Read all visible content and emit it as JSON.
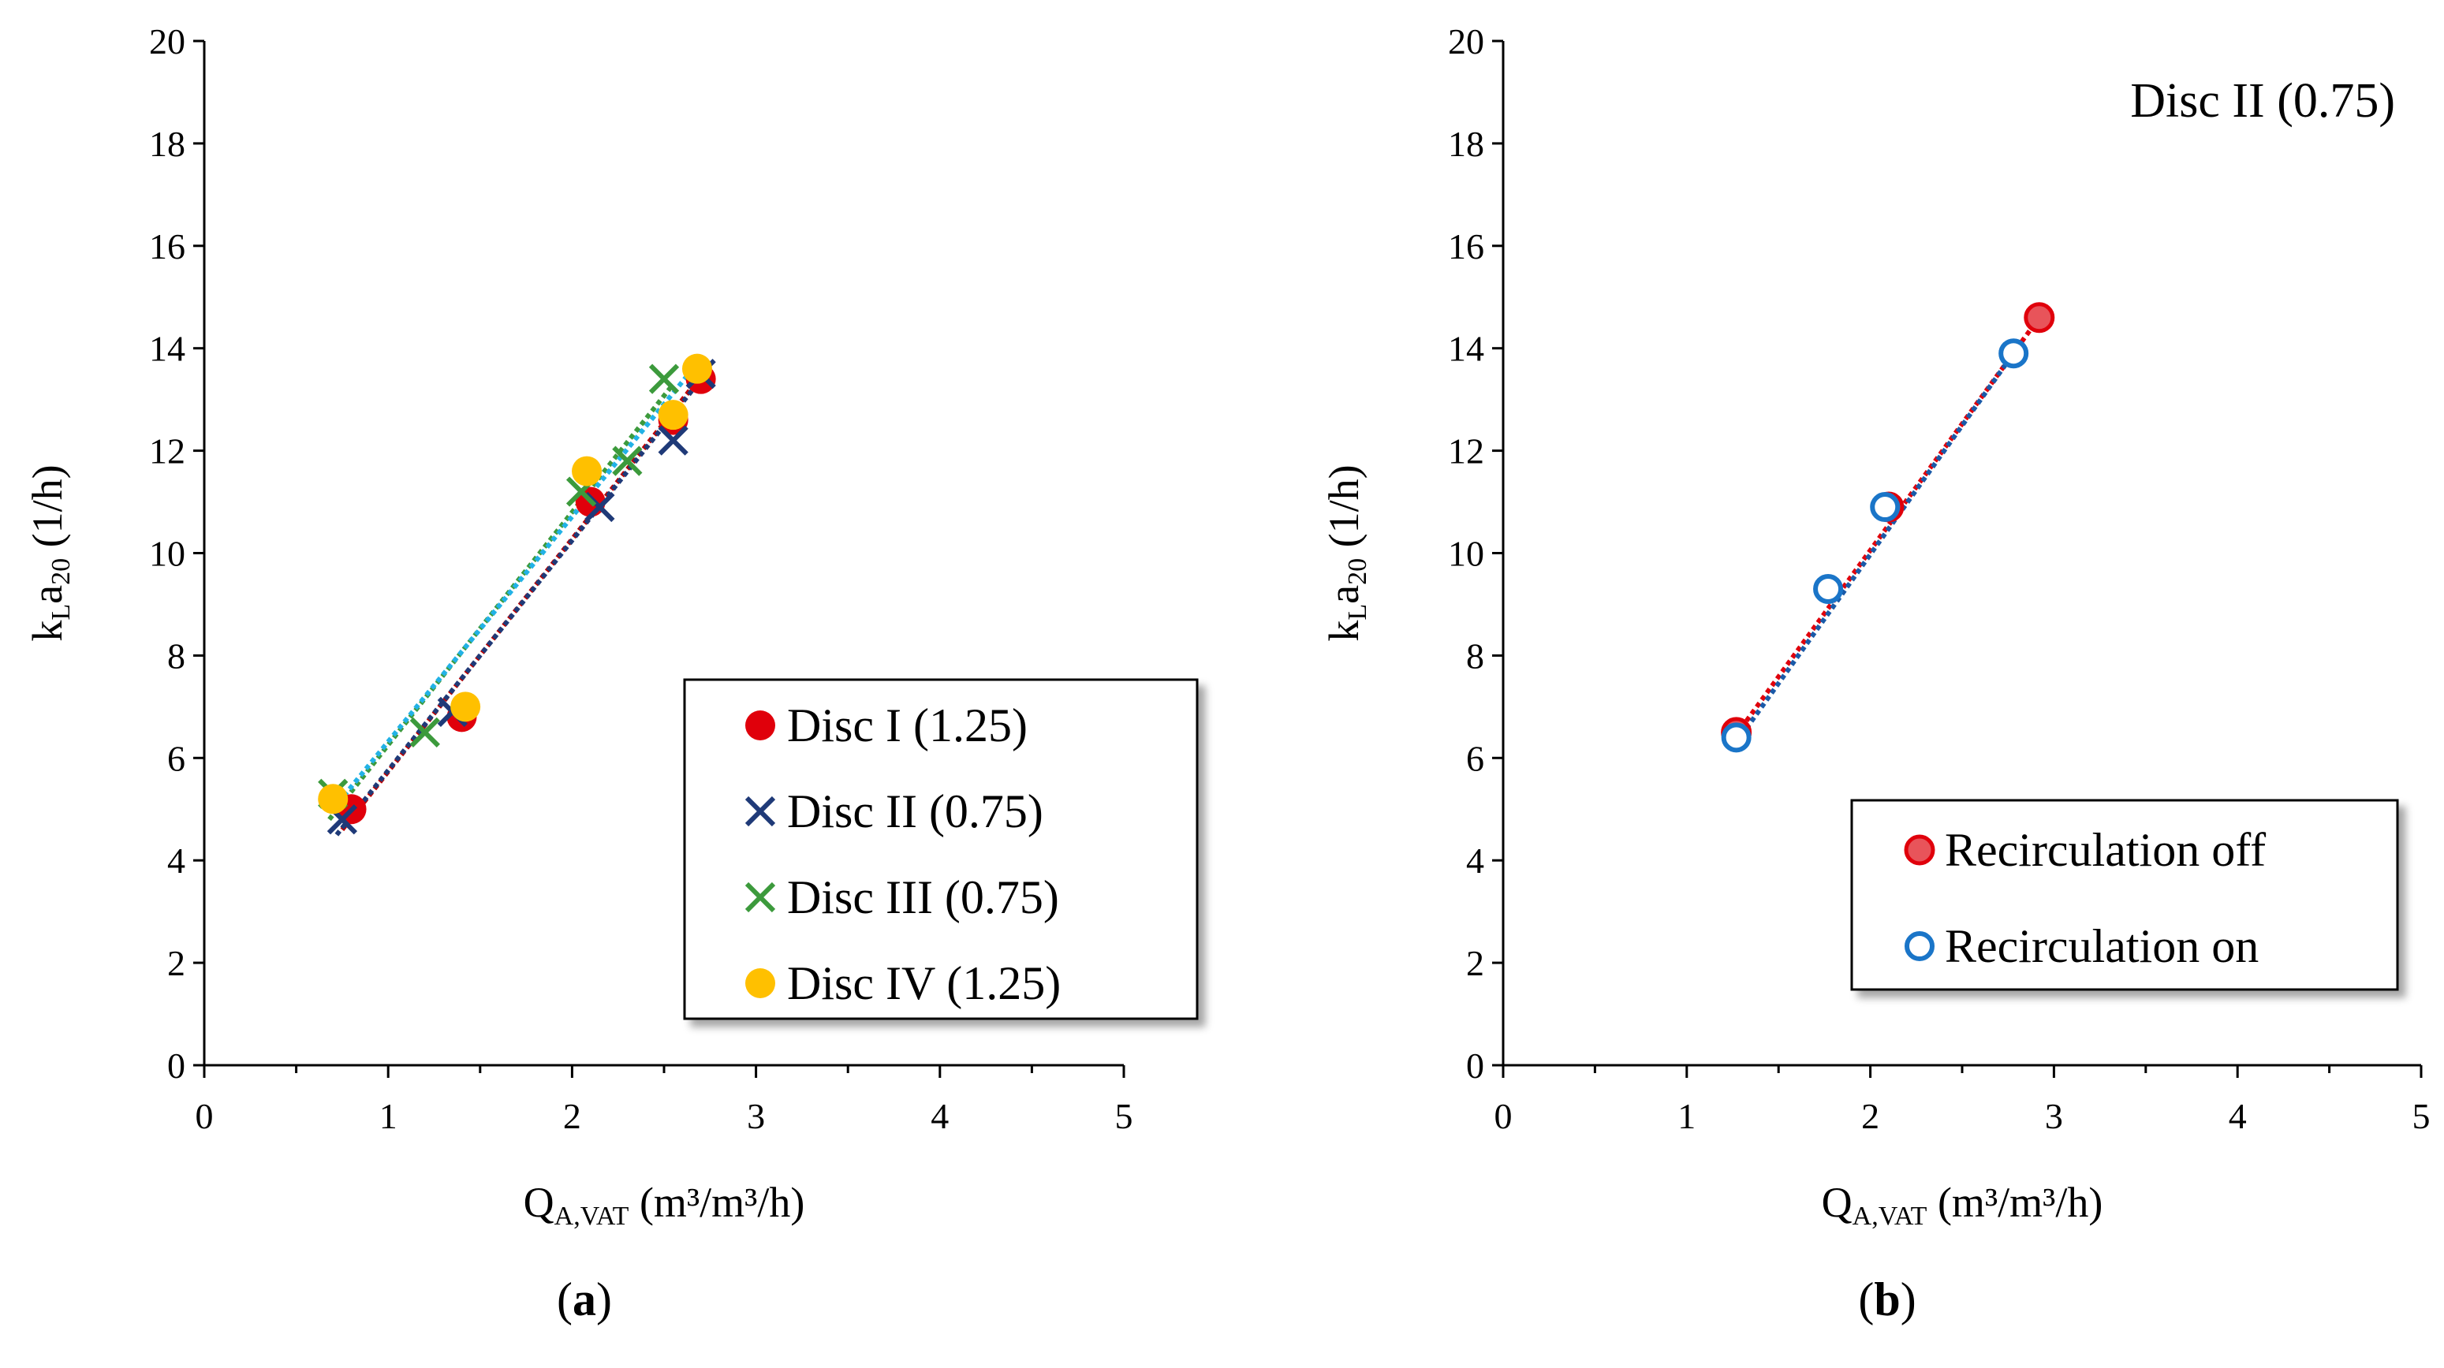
{
  "chart_data": [
    {
      "type": "scatter",
      "panel_label": "a",
      "xlabel": {
        "main": "Q",
        "sub": "A,VAT",
        "unit": " (m³/m³/h)"
      },
      "ylabel": {
        "k": "k",
        "k_sub": "L",
        "a": "a",
        "a_sub": "20",
        "unit": " (1/h)"
      },
      "xlim": [
        0,
        5
      ],
      "ylim": [
        0,
        20
      ],
      "xticks": [
        "0",
        "1",
        "2",
        "3",
        "4",
        "5"
      ],
      "yticks": [
        "0",
        "2",
        "4",
        "6",
        "8",
        "10",
        "12",
        "14",
        "16",
        "18",
        "20"
      ],
      "legend_position": "bottom-right",
      "series": [
        {
          "name": "Disc I (1.25)",
          "marker": "filled-circle",
          "color": "#e0000b",
          "trend_color": "#c00000",
          "points": [
            [
              0.8,
              5.0
            ],
            [
              1.4,
              6.8
            ],
            [
              2.1,
              11.0
            ],
            [
              2.55,
              12.6
            ],
            [
              2.7,
              13.4
            ]
          ],
          "trend": [
            [
              0.75,
              4.6
            ],
            [
              2.7,
              13.45
            ]
          ]
        },
        {
          "name": "Disc II (0.75)",
          "marker": "x",
          "color": "#1f3a78",
          "trend_color": "#1f3a78",
          "points": [
            [
              0.75,
              4.8
            ],
            [
              1.35,
              6.9
            ],
            [
              2.15,
              10.9
            ],
            [
              2.55,
              12.2
            ],
            [
              2.7,
              13.5
            ]
          ],
          "trend": [
            [
              0.72,
              4.5
            ],
            [
              2.68,
              13.3
            ]
          ]
        },
        {
          "name": "Disc III (0.75)",
          "marker": "x",
          "color": "#3c9a3c",
          "trend_color": "#3c9a3c",
          "points": [
            [
              0.7,
              5.3
            ],
            [
              1.2,
              6.5
            ],
            [
              2.05,
              11.2
            ],
            [
              2.3,
              11.8
            ],
            [
              2.5,
              13.4
            ]
          ],
          "trend": [
            [
              0.68,
              4.8
            ],
            [
              2.55,
              13.3
            ]
          ]
        },
        {
          "name": "Disc IV (1.25)",
          "marker": "filled-circle",
          "color": "#ffc000",
          "trend_color": "#22b2e6",
          "points": [
            [
              0.7,
              5.2
            ],
            [
              1.42,
              7.0
            ],
            [
              2.08,
              11.6
            ],
            [
              2.55,
              12.7
            ],
            [
              2.68,
              13.6
            ]
          ],
          "trend": [
            [
              0.7,
              5.0
            ],
            [
              2.68,
              13.7
            ]
          ]
        }
      ]
    },
    {
      "type": "scatter",
      "panel_label": "b",
      "annotation": "Disc II (0.75)",
      "xlabel": {
        "main": "Q",
        "sub": "A,VAT",
        "unit": " (m³/m³/h)"
      },
      "ylabel": {
        "k": "k",
        "k_sub": "L",
        "a": "a",
        "a_sub": "20",
        "unit": " (1/h)"
      },
      "xlim": [
        0,
        5
      ],
      "ylim": [
        0,
        20
      ],
      "xticks": [
        "0",
        "1",
        "2",
        "3",
        "4",
        "5"
      ],
      "yticks": [
        "0",
        "2",
        "4",
        "6",
        "8",
        "10",
        "12",
        "14",
        "16",
        "18",
        "20"
      ],
      "legend_position": "bottom-right",
      "series": [
        {
          "name": "Recirculation off",
          "marker": "filled-circle-outlined",
          "color": "#e8545a",
          "edge_color": "#e0000b",
          "trend_color": "#e0000b",
          "points": [
            [
              1.27,
              6.5
            ],
            [
              2.1,
              10.9
            ],
            [
              2.92,
              14.6
            ]
          ],
          "trend": [
            [
              1.27,
              6.45
            ],
            [
              2.92,
              14.6
            ]
          ]
        },
        {
          "name": "Recirculation on",
          "marker": "open-circle",
          "color": "#1a75c8",
          "trend_color": "#1a5aa8",
          "points": [
            [
              1.27,
              6.4
            ],
            [
              1.77,
              9.3
            ],
            [
              2.08,
              10.9
            ],
            [
              2.78,
              13.9
            ]
          ],
          "trend": [
            [
              1.27,
              6.3
            ],
            [
              2.78,
              13.9
            ]
          ]
        }
      ]
    }
  ]
}
